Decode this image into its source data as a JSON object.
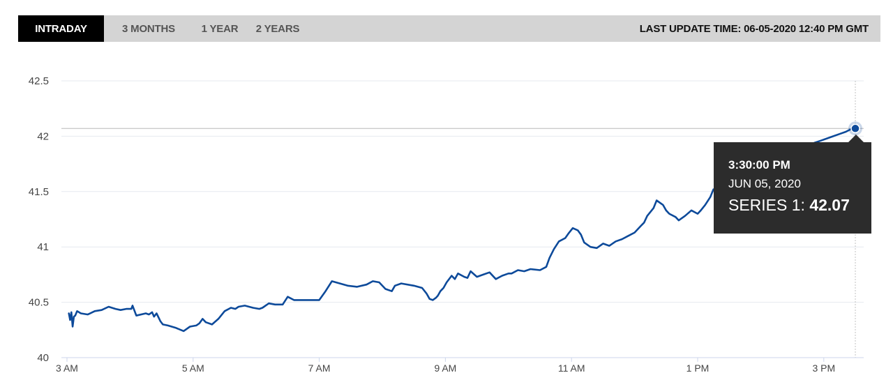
{
  "tabs": [
    {
      "label": "INTRADAY",
      "active": true
    },
    {
      "label": "3 MONTHS",
      "active": false
    },
    {
      "label": "1 YEAR",
      "active": false
    },
    {
      "label": "2 YEARS",
      "active": false
    }
  ],
  "last_update": "LAST UPDATE TIME: 06-05-2020 12:40 PM GMT",
  "tooltip": {
    "time": "3:30:00 PM",
    "date": "JUN 05, 2020",
    "series_label": "SERIES 1: ",
    "value": "42.07"
  },
  "colors": {
    "line": "#0d4a9a",
    "grid": "#e6e9ef",
    "tooltip_bg": "#2c2c2c",
    "active_tab": "#000000",
    "tabbar": "#d4d4d4"
  },
  "chart_data": {
    "type": "line",
    "title": "",
    "xlabel": "",
    "ylabel": "",
    "ylim": [
      40,
      42.5
    ],
    "yticks": [
      40,
      40.5,
      41,
      41.5,
      42,
      42.5
    ],
    "ytick_labels": [
      "40",
      "40.5",
      "41",
      "41.5",
      "42",
      "42.5"
    ],
    "xlim": [
      3,
      15.5
    ],
    "xticks": [
      3,
      5,
      7,
      9,
      11,
      13,
      15
    ],
    "xtick_labels": [
      "3 AM",
      "5 AM",
      "7 AM",
      "9 AM",
      "11 AM",
      "1 PM",
      "3 PM"
    ],
    "grid": true,
    "series": [
      {
        "name": "Series 1",
        "x": [
          3.03,
          3.05,
          3.07,
          3.09,
          3.11,
          3.13,
          3.16,
          3.22,
          3.33,
          3.44,
          3.55,
          3.66,
          3.77,
          3.85,
          3.94,
          4.02,
          4.04,
          4.1,
          4.25,
          4.3,
          4.35,
          4.38,
          4.42,
          4.48,
          4.52,
          4.6,
          4.72,
          4.85,
          4.95,
          5.05,
          5.1,
          5.15,
          5.2,
          5.3,
          5.4,
          5.5,
          5.6,
          5.67,
          5.72,
          5.82,
          5.95,
          6.05,
          6.1,
          6.2,
          6.3,
          6.42,
          6.5,
          6.6,
          6.7,
          6.75,
          6.8,
          6.9,
          7.0,
          7.1,
          7.2,
          7.45,
          7.6,
          7.75,
          7.85,
          7.95,
          8.05,
          8.15,
          8.2,
          8.3,
          8.5,
          8.63,
          8.7,
          8.75,
          8.8,
          8.85,
          8.88,
          8.92,
          8.97,
          9.02,
          9.1,
          9.15,
          9.2,
          9.3,
          9.35,
          9.4,
          9.5,
          9.6,
          9.7,
          9.8,
          9.9,
          10.0,
          10.05,
          10.15,
          10.25,
          10.35,
          10.5,
          10.6,
          10.65,
          10.72,
          10.8,
          10.9,
          10.95,
          11.02,
          11.1,
          11.15,
          11.2,
          11.3,
          11.4,
          11.5,
          11.6,
          11.7,
          11.8,
          11.9,
          12.0,
          12.1,
          12.15,
          12.2,
          12.3,
          12.35,
          12.45,
          12.5,
          12.55,
          12.65,
          12.7,
          12.8,
          12.9,
          13.0,
          13.05,
          13.12,
          13.2,
          13.25,
          13.3,
          13.35,
          13.45,
          13.55,
          13.65,
          13.75,
          13.85,
          13.95,
          14.05,
          14.15,
          14.25,
          14.35,
          14.45,
          14.55,
          14.65,
          14.75,
          14.85,
          14.95,
          15.05,
          15.15,
          15.25,
          15.35,
          15.45
        ],
        "y": [
          40.4,
          40.34,
          40.41,
          40.28,
          40.37,
          40.38,
          40.42,
          40.4,
          40.39,
          40.42,
          40.43,
          40.46,
          40.44,
          40.43,
          40.44,
          40.44,
          40.47,
          40.38,
          40.4,
          40.39,
          40.41,
          40.37,
          40.4,
          40.33,
          40.3,
          40.29,
          40.27,
          40.24,
          40.28,
          40.29,
          40.31,
          40.35,
          40.32,
          40.3,
          40.35,
          40.42,
          40.45,
          40.44,
          40.46,
          40.47,
          40.45,
          40.44,
          40.45,
          40.49,
          40.48,
          40.48,
          40.55,
          40.52,
          40.52,
          40.52,
          40.52,
          40.52,
          40.52,
          40.6,
          40.69,
          40.65,
          40.64,
          40.66,
          40.69,
          40.68,
          40.62,
          40.6,
          40.65,
          40.67,
          40.65,
          40.63,
          40.58,
          40.53,
          40.52,
          40.54,
          40.56,
          40.6,
          40.63,
          40.68,
          40.74,
          40.71,
          40.76,
          40.73,
          40.72,
          40.78,
          40.73,
          40.75,
          40.77,
          40.71,
          40.74,
          40.76,
          40.76,
          40.79,
          40.78,
          40.8,
          40.79,
          40.82,
          40.9,
          40.98,
          41.05,
          41.08,
          41.12,
          41.17,
          41.15,
          41.11,
          41.04,
          41.0,
          40.99,
          41.03,
          41.01,
          41.05,
          41.07,
          41.1,
          41.13,
          41.19,
          41.22,
          41.28,
          41.35,
          41.42,
          41.38,
          41.33,
          41.3,
          41.27,
          41.24,
          41.28,
          41.33,
          41.3,
          41.33,
          41.38,
          41.45,
          41.52,
          41.48,
          41.42,
          41.4,
          41.47,
          41.53,
          41.6,
          41.64,
          41.66,
          41.7,
          41.74,
          41.78,
          41.8,
          41.84,
          41.86,
          41.89,
          41.91,
          41.94,
          41.96,
          41.98,
          42.0,
          42.02,
          42.04,
          42.07
        ]
      }
    ],
    "highlight": {
      "x": 15.5,
      "y": 42.07
    }
  }
}
